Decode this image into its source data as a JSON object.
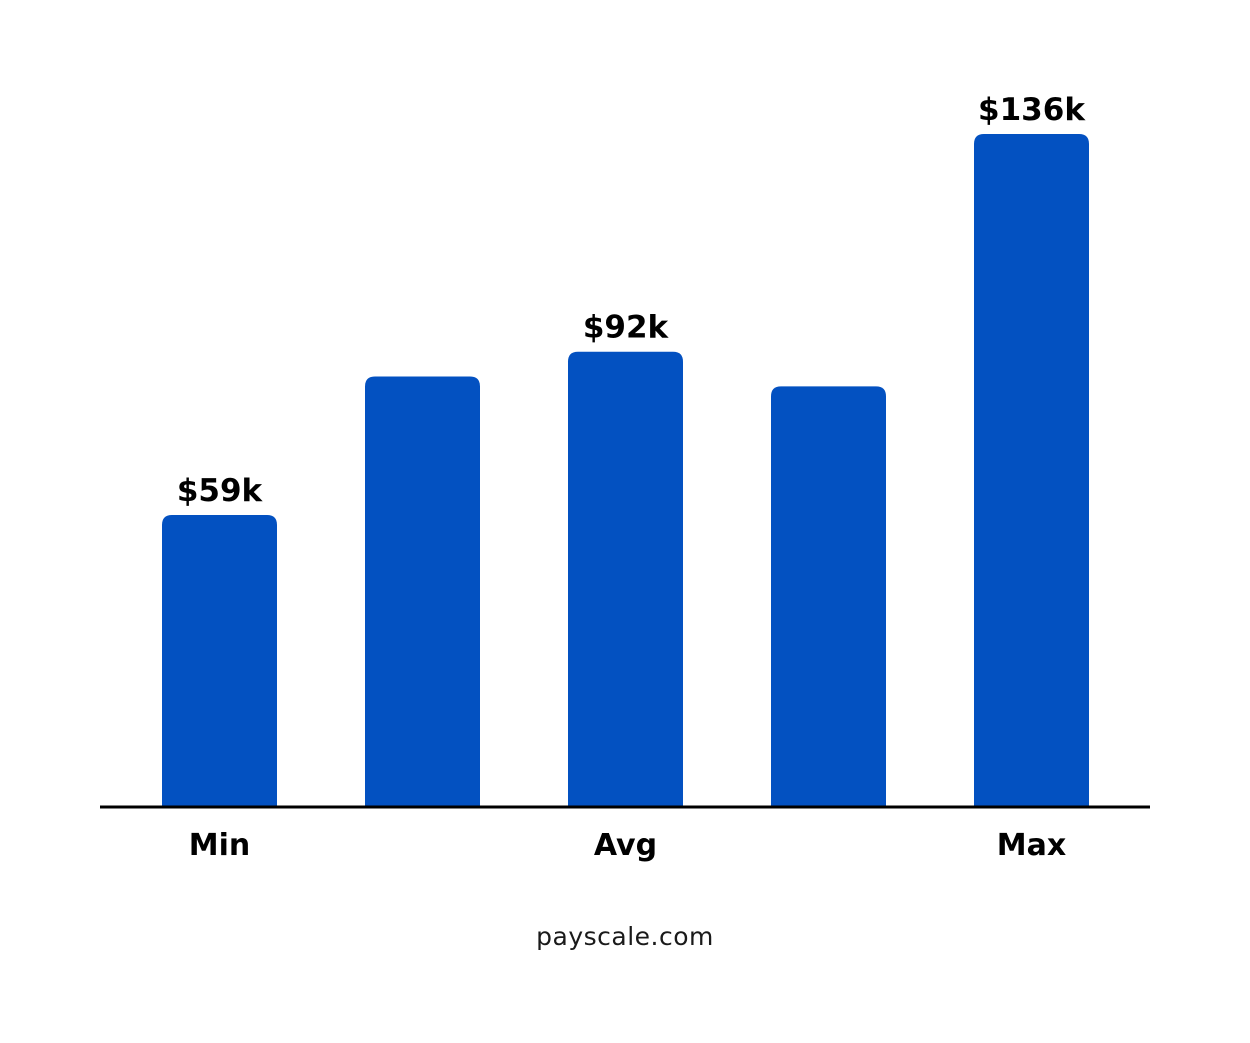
{
  "chart_data": {
    "type": "bar",
    "categories": [
      "Min",
      "",
      "Avg",
      "",
      "Max"
    ],
    "values": [
      59,
      87,
      92,
      85,
      136
    ],
    "data_labels": [
      "$59k",
      "",
      "$92k",
      "",
      "$136k"
    ],
    "unit": "$k",
    "ylim": [
      0,
      136
    ],
    "grid": false,
    "legend": "none",
    "bar_color": "#0351C1",
    "axis_color": "#000000"
  },
  "source": "payscale.com"
}
